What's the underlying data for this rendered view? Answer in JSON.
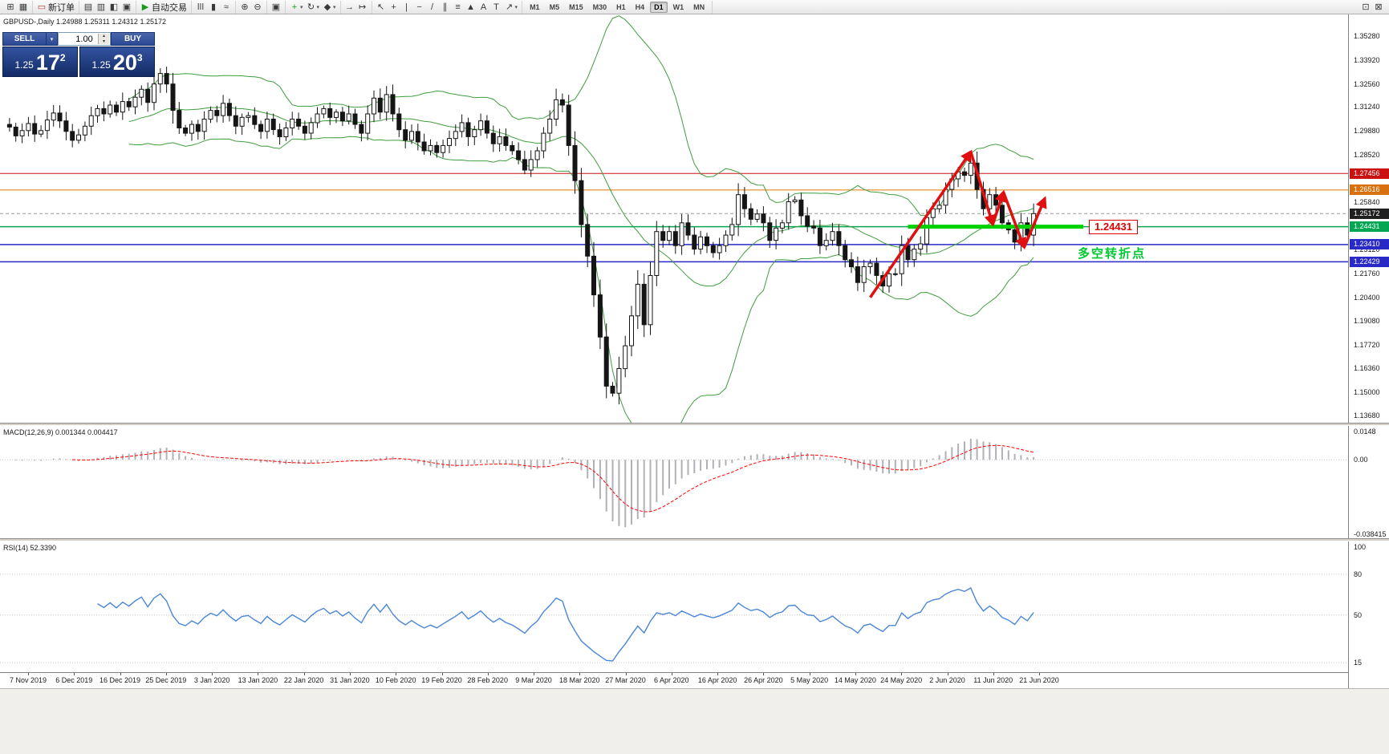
{
  "toolbar": {
    "groups": [
      {
        "items": [
          {
            "name": "new-chart",
            "glyph": "⊞"
          },
          {
            "name": "profiles",
            "glyph": "▦"
          }
        ]
      },
      {
        "items": [
          {
            "name": "new-order",
            "glyph": "▭",
            "glyph_color": "#b33333",
            "label": "新订单"
          }
        ]
      },
      {
        "items": [
          {
            "name": "market-watch",
            "glyph": "▤"
          },
          {
            "name": "data-window",
            "glyph": "▥"
          },
          {
            "name": "navigator",
            "glyph": "◧"
          },
          {
            "name": "terminal",
            "glyph": "▣"
          }
        ]
      },
      {
        "items": [
          {
            "name": "auto-trading",
            "glyph": "▶",
            "glyph_color": "#1a9c1a",
            "label": "自动交易"
          }
        ]
      },
      {
        "items": [
          {
            "name": "bar-chart",
            "glyph": "ǀǀǀ"
          },
          {
            "name": "candlestick-chart",
            "glyph": "▮"
          },
          {
            "name": "line-chart",
            "glyph": "≈"
          }
        ]
      },
      {
        "items": [
          {
            "name": "zoom-in",
            "glyph": "⊕"
          },
          {
            "name": "zoom-out",
            "glyph": "⊖"
          }
        ]
      },
      {
        "items": [
          {
            "name": "tile-windows",
            "glyph": "▣"
          }
        ]
      },
      {
        "items": [
          {
            "name": "indicators",
            "glyph": "+",
            "glyph_color": "#1a9c1a",
            "caret": true
          },
          {
            "name": "periods",
            "glyph": "↻",
            "caret": true
          },
          {
            "name": "templates",
            "glyph": "◆",
            "caret": true
          }
        ]
      },
      {
        "items": [
          {
            "name": "auto-scroll",
            "glyph": "→"
          },
          {
            "name": "chart-shift",
            "glyph": "↦"
          }
        ]
      },
      {
        "items": [
          {
            "name": "cursor",
            "glyph": "↖"
          },
          {
            "name": "crosshair",
            "glyph": "+"
          },
          {
            "name": "vertical-line",
            "glyph": "|"
          },
          {
            "name": "horizontal-line",
            "glyph": "−"
          },
          {
            "name": "trendline",
            "glyph": "/"
          },
          {
            "name": "equidistant-channel",
            "glyph": "∥"
          },
          {
            "name": "fibonacci",
            "glyph": "≡"
          },
          {
            "name": "shapes",
            "glyph": "▲"
          },
          {
            "name": "text",
            "glyph": "A"
          },
          {
            "name": "text-label",
            "glyph": "T"
          },
          {
            "name": "arrows",
            "glyph": "↗",
            "caret": true
          }
        ]
      },
      {
        "timeframes": true
      },
      {
        "right": true,
        "items": [
          {
            "name": "window-list",
            "glyph": "⊡"
          },
          {
            "name": "help",
            "glyph": "⊠"
          }
        ]
      }
    ],
    "timeframes": [
      "M1",
      "M5",
      "M15",
      "M30",
      "H1",
      "H4",
      "D1",
      "W1",
      "MN"
    ],
    "active_timeframe": "D1"
  },
  "chart": {
    "info_line": "GBPUSD-,Daily  1.24988 1.25311 1.24312 1.25172"
  },
  "one_click": {
    "sell_label": "SELL",
    "buy_label": "BUY",
    "volume": "1.00",
    "sell_price": "1.25",
    "sell_big": "17",
    "sell_sup": "2",
    "buy_price": "1.25",
    "buy_big": "20",
    "buy_sup": "3"
  },
  "chart_data": {
    "type": "candlestick",
    "symbol": "GBPUSD-",
    "timeframe": "Daily",
    "ohlc_display": {
      "open": "1.24988",
      "high": "1.25311",
      "low": "1.24312",
      "close": "1.25172"
    },
    "x_labels": [
      "7 Nov 2019",
      "6 Dec 2019",
      "16 Dec 2019",
      "25 Dec 2019",
      "3 Jan 2020",
      "13 Jan 2020",
      "22 Jan 2020",
      "31 Jan 2020",
      "10 Feb 2020",
      "19 Feb 2020",
      "28 Feb 2020",
      "9 Mar 2020",
      "18 Mar 2020",
      "27 Mar 2020",
      "6 Apr 2020",
      "16 Apr 2020",
      "26 Apr 2020",
      "5 May 2020",
      "14 May 2020",
      "24 May 2020",
      "2 Jun 2020",
      "11 Jun 2020",
      "21 Jun 2020"
    ],
    "closes": [
      1.301,
      1.296,
      1.299,
      1.303,
      1.297,
      1.299,
      1.305,
      1.309,
      1.3045,
      1.2985,
      1.2935,
      1.2965,
      1.3015,
      1.3075,
      1.3115,
      1.3085,
      1.3135,
      1.3095,
      1.3155,
      1.3125,
      1.318,
      1.3225,
      1.315,
      1.3255,
      1.3315,
      1.3255,
      1.3105,
      1.3005,
      1.2975,
      1.3025,
      1.2985,
      1.3055,
      1.3105,
      1.3075,
      1.3145,
      1.3075,
      1.3015,
      1.3065,
      1.3075,
      1.3025,
      1.2985,
      1.3055,
      1.2995,
      1.2955,
      1.3005,
      1.3055,
      1.3015,
      1.2975,
      1.3035,
      1.3085,
      1.3115,
      1.3065,
      1.3095,
      1.3045,
      1.3085,
      1.3025,
      1.2975,
      1.3085,
      1.3175,
      1.3095,
      1.3195,
      1.3085,
      1.2995,
      1.2935,
      1.2985,
      1.2925,
      1.2875,
      1.2905,
      1.2865,
      1.2905,
      1.2945,
      1.2985,
      1.3035,
      1.2955,
      1.2995,
      1.3045,
      1.2975,
      1.2915,
      1.2955,
      1.2905,
      1.2875,
      1.2825,
      1.2765,
      1.2825,
      1.2875,
      1.2975,
      1.3055,
      1.3165,
      1.3135,
      1.2905,
      1.2705,
      1.2455,
      1.2275,
      1.2055,
      1.1815,
      1.1535,
      1.1495,
      1.1635,
      1.1765,
      1.1935,
      1.2115,
      1.1885,
      1.2165,
      1.2415,
      1.2365,
      1.2415,
      1.2335,
      1.2465,
      1.2395,
      1.2315,
      1.2385,
      1.2335,
      1.2295,
      1.2335,
      1.2395,
      1.2455,
      1.2625,
      1.2545,
      1.2485,
      1.2515,
      1.2465,
      1.2365,
      1.2435,
      1.2465,
      1.2585,
      1.2595,
      1.2505,
      1.2445,
      1.2435,
      1.2335,
      1.2365,
      1.2415,
      1.2335,
      1.2255,
      1.2215,
      1.2125,
      1.2215,
      1.2235,
      1.2165,
      1.2105,
      1.2175,
      1.2175,
      1.2335,
      1.2255,
      1.2315,
      1.2345,
      1.2495,
      1.2545,
      1.2565,
      1.2655,
      1.2715,
      1.2755,
      1.2735,
      1.2805,
      1.2655,
      1.2545,
      1.2625,
      1.2565,
      1.2465,
      1.2425,
      1.2355,
      1.2465,
      1.2395,
      1.25172
    ],
    "ylim_main": [
      1.1327,
      1.3651
    ],
    "y_axis_labels": [
      "1.35280",
      "1.33920",
      "1.32560",
      "1.31240",
      "1.29880",
      "1.28520",
      "1.25840",
      "1.23120",
      "1.21760",
      "1.20400",
      "1.19080",
      "1.17720",
      "1.16360",
      "1.15000",
      "1.13680"
    ],
    "price_tags": [
      {
        "value": "1.27456",
        "bg": "#cc1111"
      },
      {
        "value": "1.26516",
        "bg": "#d8700d"
      },
      {
        "value": "1.25172",
        "bg": "#202020"
      },
      {
        "value": "1.24431",
        "bg": "#00a651"
      },
      {
        "value": "1.23410",
        "bg": "#2929c8"
      },
      {
        "value": "1.22429",
        "bg": "#2929c8"
      }
    ],
    "hlines": [
      {
        "price": 1.27456,
        "color": "#cc1111",
        "w": 1,
        "dash": ""
      },
      {
        "price": 1.26516,
        "color": "#e07b00",
        "w": 1,
        "dash": ""
      },
      {
        "price": 1.25172,
        "color": "#9a9a9a",
        "w": 1,
        "dash": "4 3"
      },
      {
        "price": 1.24431,
        "color": "#00a651",
        "w": 1.5,
        "dash": ""
      },
      {
        "price": 1.2341,
        "color": "#2929c8",
        "w": 1.5,
        "dash": ""
      },
      {
        "price": 1.22429,
        "color": "#2929c8",
        "w": 1.5,
        "dash": ""
      }
    ],
    "bollinger": {
      "period": 20,
      "deviation": 2
    },
    "annotations": {
      "zigzag": [
        [
          137,
          1.204
        ],
        [
          153,
          1.287
        ],
        [
          156.5,
          1.2455
        ],
        [
          158.2,
          1.264
        ],
        [
          161.5,
          1.2325
        ],
        [
          164.8,
          1.2605
        ]
      ],
      "green_segment": {
        "price": 1.24431,
        "from_index": 143,
        "to_x": 1350
      },
      "turn_label": "1.24431",
      "turn_note": "多空转折点"
    },
    "macd": {
      "label": "MACD(12,26,9) 0.001344 0.004417",
      "fast": 12,
      "slow": 26,
      "signal": 9,
      "scale": [
        "0.0148",
        "0.00",
        "-0.038415"
      ],
      "ylim": [
        -0.0405,
        0.0175
      ]
    },
    "rsi": {
      "label": "RSI(14) 52.3390",
      "period": 14,
      "scale": [
        "100",
        "80",
        "50",
        "15"
      ],
      "levels": [
        80,
        50,
        15
      ],
      "ylim": [
        8,
        104
      ]
    },
    "colors": {
      "bollinger": "#3f9e3f",
      "candle_up": "#ffffff",
      "candle_down": "#151515",
      "candle_outline": "#151515",
      "macd_hist": "#b0b0b8",
      "macd_signal": "#ff0000",
      "rsi_line": "#4a86d8",
      "zigzag": "#e01010",
      "green_segment": "#00d200"
    }
  }
}
